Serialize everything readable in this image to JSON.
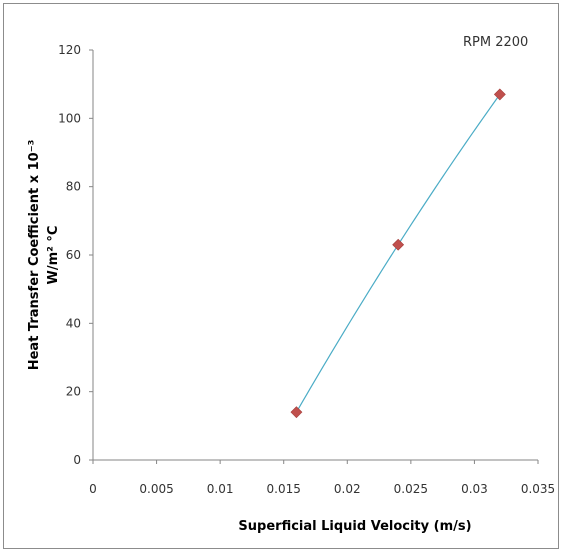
{
  "chart_data": {
    "type": "scatter",
    "title": "",
    "annotation": "RPM  2200",
    "xlabel": "Superficial Liquid Velocity (m/s)",
    "ylabel_line1": "Heat Transfer Coefficient x 10⁻³",
    "ylabel_line2": "W/m² °C",
    "xlim": [
      0,
      0.035
    ],
    "ylim": [
      0,
      120
    ],
    "x_ticks": [
      "0",
      "0.005",
      "0.01",
      "0.015",
      "0.02",
      "0.025",
      "0.03",
      "0.035"
    ],
    "y_ticks": [
      "0",
      "20",
      "40",
      "60",
      "80",
      "100",
      "120"
    ],
    "grid": false,
    "legend": "none",
    "series": [
      {
        "x": [
          0.016,
          0.024,
          0.032
        ],
        "y": [
          14,
          63,
          107
        ],
        "marker": "diamond",
        "marker_color": "#c0504d"
      }
    ],
    "trendline": {
      "kind": "polynomial",
      "color": "#4bacc6",
      "x_range": [
        0.016,
        0.032
      ]
    }
  }
}
